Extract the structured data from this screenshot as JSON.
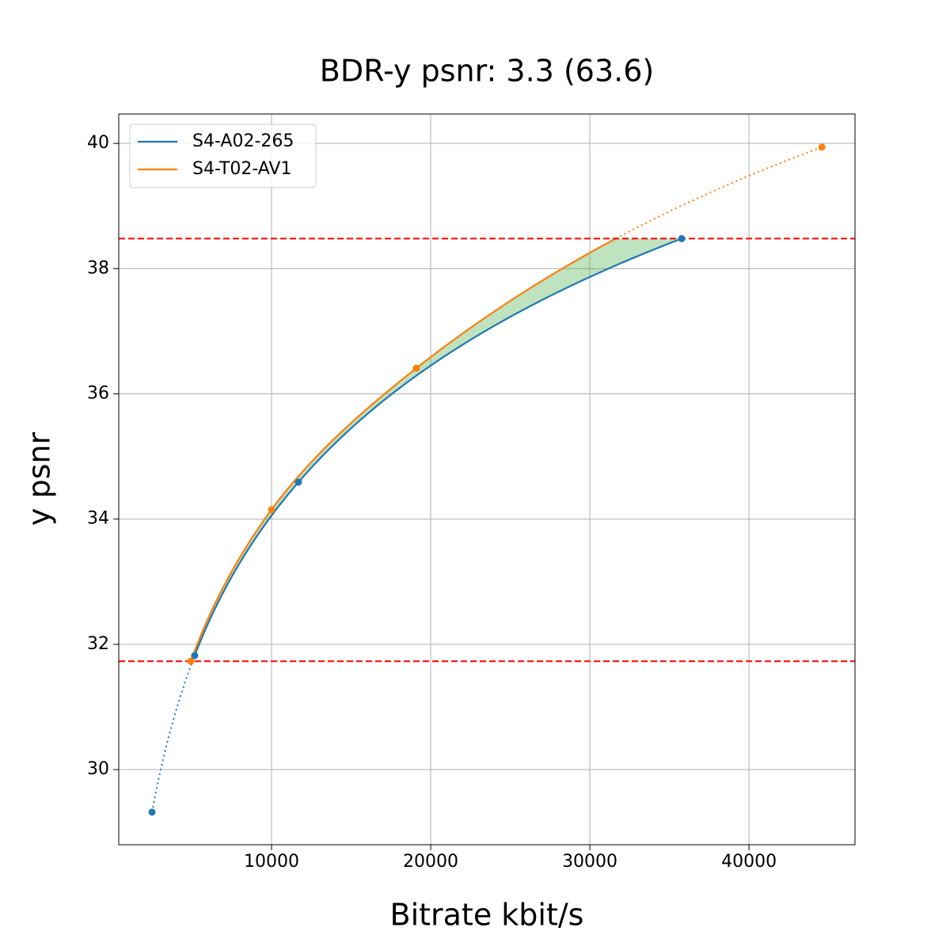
{
  "chart_data": {
    "type": "scatter",
    "title": "BDR-y psnr: 3.3 (63.6)",
    "xlabel": "Bitrate kbit/s",
    "ylabel": "y psnr",
    "series": [
      {
        "name": "S4-A02-265",
        "color": "#1f77b4",
        "x": [
          2490,
          5170,
          11690,
          35770
        ],
        "values": [
          29.32,
          31.82,
          34.59,
          38.48
        ]
      },
      {
        "name": "S4-T02-AV1",
        "color": "#ff7f0e",
        "x": [
          4925,
          10000,
          19100,
          44580
        ],
        "values": [
          31.73,
          34.15,
          36.41,
          39.94
        ]
      }
    ],
    "hlines": [
      31.73,
      38.48
    ],
    "hline_color": "#ff0000",
    "fill_color": "#2ca02c",
    "xlim": [
      400,
      46660
    ],
    "ylim": [
      28.8,
      40.47
    ],
    "xticks": [
      10000,
      20000,
      30000,
      40000
    ],
    "yticks": [
      30,
      32,
      34,
      36,
      38,
      40
    ],
    "grid": true,
    "legend": "upper-left"
  }
}
